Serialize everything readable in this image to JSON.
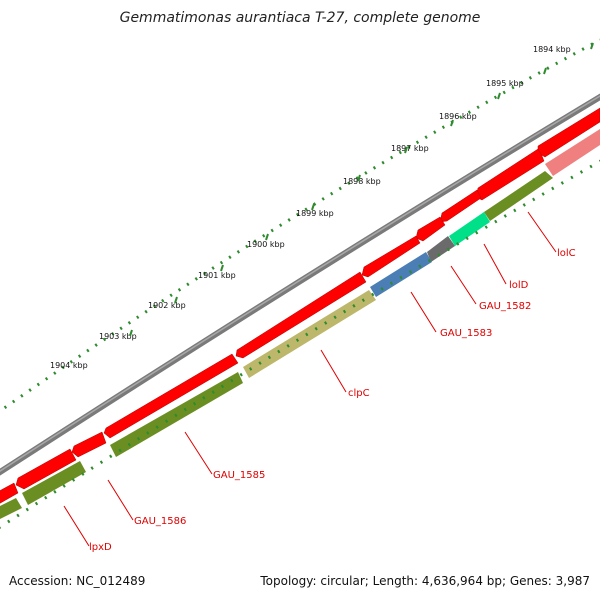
{
  "title": "Gemmatimonas aurantiaca T-27, complete genome",
  "footer": {
    "accession": "Accession: NC_012489",
    "summary": "Topology: circular; Length: 4,636,964 bp; Genes: 3,987"
  },
  "colors": {
    "backbone": "#858585",
    "forward_gene": "#ff0000",
    "reverse_gene": "#6b8e23",
    "scale_ticks": "#2e8b2e",
    "gene_label": "#e00000"
  },
  "scale": {
    "unit": "kbp",
    "labels": [
      "1894 kbp",
      "1895 kbp",
      "1896 kbp",
      "1897 kbp",
      "1898 kbp",
      "1899 kbp",
      "1900 kbp",
      "1901 kbp",
      "1902 kbp",
      "1903 kbp",
      "1904 kbp"
    ]
  },
  "gene_labels": [
    "lolC",
    "lolD",
    "GAU_1582",
    "GAU_1583",
    "clpC",
    "GAU_1585",
    "GAU_1586",
    "lpxD"
  ]
}
